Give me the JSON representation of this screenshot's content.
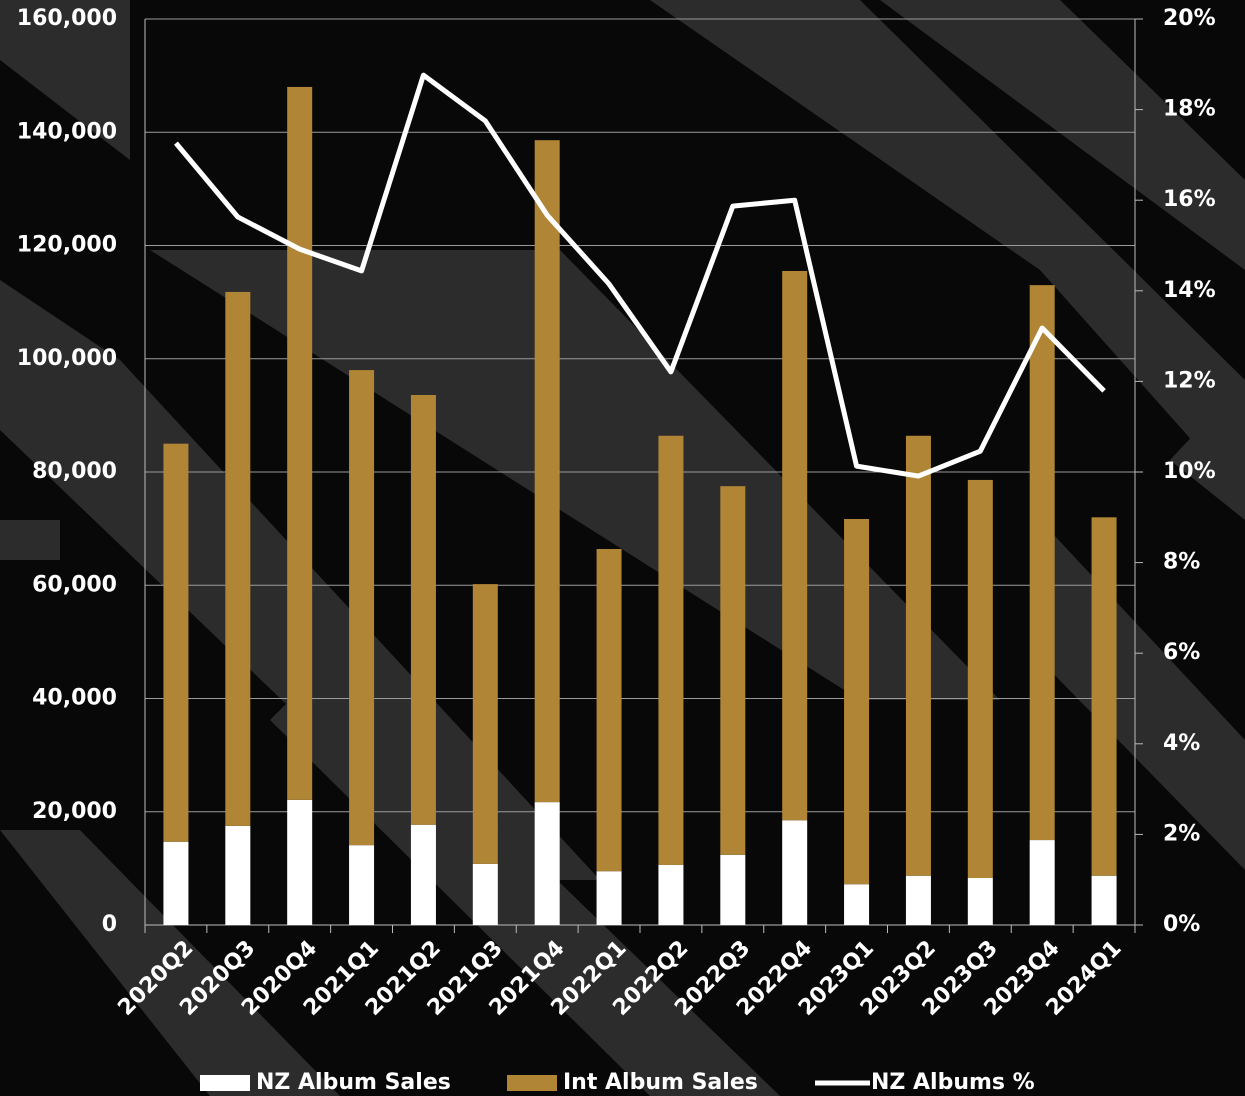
{
  "chart_data": {
    "type": "bar",
    "stacked": true,
    "categories": [
      "2020Q2",
      "2020Q3",
      "2020Q4",
      "2021Q1",
      "2021Q2",
      "2021Q3",
      "2021Q4",
      "2022Q1",
      "2022Q2",
      "2022Q3",
      "2022Q4",
      "2023Q1",
      "2023Q2",
      "2023Q3",
      "2023Q4",
      "2024Q1"
    ],
    "series": [
      {
        "name": "NZ Album Sales",
        "type": "bar",
        "color": "#ffffff",
        "values": [
          14700,
          17500,
          22100,
          14100,
          17700,
          10800,
          21700,
          9500,
          10600,
          12400,
          18500,
          7200,
          8700,
          8300,
          15000,
          8700
        ]
      },
      {
        "name": "Int Album Sales",
        "type": "bar",
        "color": "#b08536",
        "values": [
          70300,
          94300,
          125900,
          83900,
          75900,
          49400,
          116900,
          56900,
          75800,
          65100,
          97000,
          64500,
          77700,
          70300,
          98000,
          63300
        ]
      },
      {
        "name": "NZ Albums %",
        "type": "line",
        "axis": "y2",
        "color": "#ffffff",
        "values": [
          17.26,
          15.63,
          14.92,
          14.44,
          18.76,
          17.75,
          15.67,
          14.15,
          12.21,
          15.87,
          16.0,
          10.13,
          9.91,
          10.46,
          13.18,
          11.79
        ]
      }
    ],
    "ylim": [
      0,
      160000
    ],
    "yticks": [
      0,
      {
        "value": 20000,
        "label": "20,000"
      },
      {
        "value": 40000,
        "label": "40,000"
      },
      {
        "value": 60000,
        "label": "60,000"
      },
      {
        "value": 80000,
        "label": "80,000"
      },
      {
        "value": 100000,
        "label": "100,000"
      },
      {
        "value": 120000,
        "label": "120,000"
      },
      {
        "value": 140000,
        "label": "140,000"
      },
      {
        "value": 160000,
        "label": "160,000"
      }
    ],
    "y2lim": [
      0,
      20
    ],
    "y2ticks": [
      {
        "value": 0,
        "label": "0%"
      },
      {
        "value": 2,
        "label": "2%"
      },
      {
        "value": 4,
        "label": "4%"
      },
      {
        "value": 6,
        "label": "6%"
      },
      {
        "value": 8,
        "label": "8%"
      },
      {
        "value": 10,
        "label": "10%"
      },
      {
        "value": 12,
        "label": "12%"
      },
      {
        "value": 14,
        "label": "14%"
      },
      {
        "value": 16,
        "label": "16%"
      },
      {
        "value": 18,
        "label": "18%"
      },
      {
        "value": 20,
        "label": "20%"
      }
    ],
    "grid": true,
    "legend": "bottom"
  }
}
